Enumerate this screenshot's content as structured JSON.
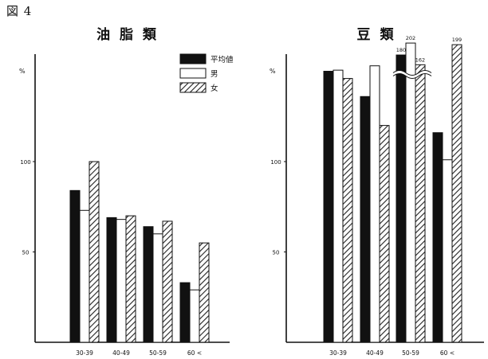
{
  "figure_label": "図 4",
  "legend": {
    "items": [
      {
        "key": "mean",
        "label": "平均値",
        "fill": "solid"
      },
      {
        "key": "male",
        "label": "男",
        "fill": "white"
      },
      {
        "key": "female",
        "label": "女",
        "fill": "hatch"
      }
    ]
  },
  "chart_data": [
    {
      "type": "bar",
      "title": "油 脂 類",
      "ylabel": "%",
      "ylim": [
        0,
        185
      ],
      "yticks": [
        50,
        100
      ],
      "categories": [
        "30-39",
        "40-49",
        "50-59",
        "60 <"
      ],
      "series": [
        {
          "name": "平均値",
          "values": [
            84,
            69,
            64,
            33
          ]
        },
        {
          "name": "男",
          "values": [
            73,
            68,
            60,
            29
          ]
        },
        {
          "name": "女",
          "values": [
            100,
            70,
            67,
            55
          ]
        }
      ],
      "annotations": []
    },
    {
      "type": "bar",
      "title": "豆 類",
      "ylabel": "%",
      "ylim": [
        0,
        185
      ],
      "yticks": [
        50,
        100
      ],
      "axis_break": true,
      "categories": [
        "30-39",
        "40-49",
        "50-59",
        "60 <"
      ],
      "series": [
        {
          "name": "平均値",
          "values": [
            150,
            136,
            180,
            116
          ]
        },
        {
          "name": "男",
          "values": [
            152,
            160,
            202,
            101
          ]
        },
        {
          "name": "女",
          "values": [
            146,
            120,
            162,
            199
          ]
        }
      ],
      "annotations": [
        {
          "category": "50-59",
          "series": "平均値",
          "text": "180"
        },
        {
          "category": "50-59",
          "series": "男",
          "text": "202"
        },
        {
          "category": "50-59",
          "series": "女",
          "text": "162"
        },
        {
          "category": "60 <",
          "series": "女",
          "text": "199"
        }
      ]
    }
  ]
}
